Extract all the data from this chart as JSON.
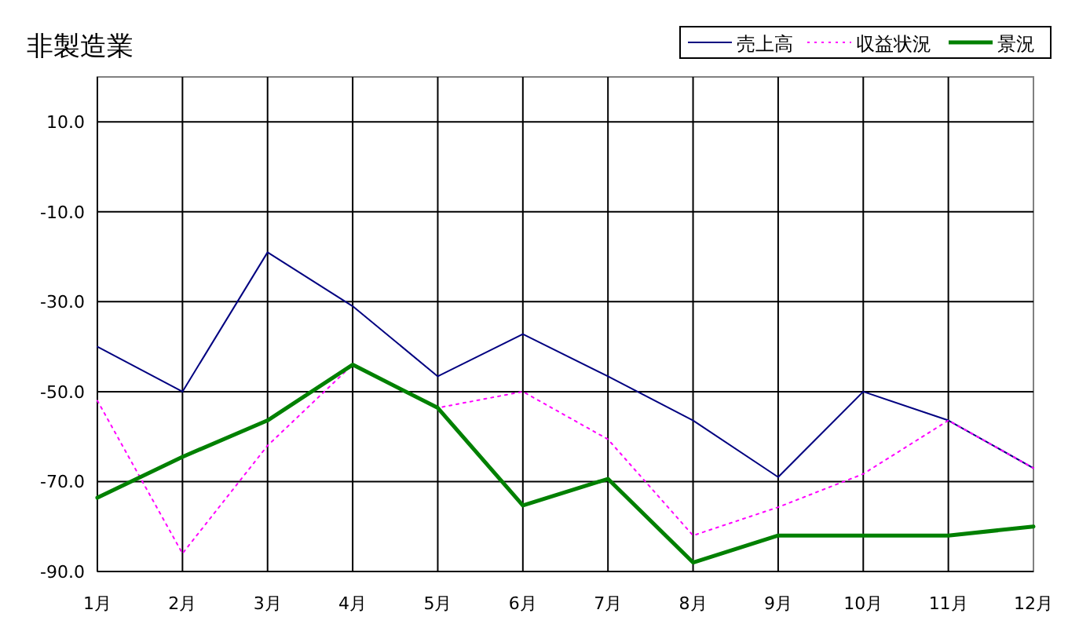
{
  "chart_data": {
    "type": "line",
    "title": "非製造業",
    "categories": [
      "1月",
      "2月",
      "3月",
      "4月",
      "5月",
      "6月",
      "7月",
      "8月",
      "9月",
      "10月",
      "11月",
      "12月"
    ],
    "series": [
      {
        "name": "売上高",
        "color": "#000080",
        "line_style": "solid",
        "values": [
          -40,
          -50,
          -19,
          -31,
          -46.6,
          -37.2,
          -46.6,
          -56.4,
          -69,
          -50,
          -56.4,
          -67
        ]
      },
      {
        "name": "収益状況",
        "color": "#ff00ff",
        "line_style": "dotted",
        "values": [
          -52,
          -86,
          -62,
          -44,
          -53.6,
          -50,
          -60.6,
          -82,
          -75.7,
          -68.3,
          -56.4,
          -67
        ]
      },
      {
        "name": "景況",
        "color": "#008000",
        "line_style": "solid",
        "values": [
          -73.6,
          -64.5,
          -56.4,
          -44,
          -53.6,
          -75.3,
          -69.4,
          -88,
          -82,
          -82,
          -82,
          -80
        ]
      }
    ],
    "ylim": [
      -90,
      20
    ],
    "yticks": [
      {
        "value": 10,
        "label": "10.0"
      },
      {
        "value": -10,
        "label": "-10.0"
      },
      {
        "value": -30,
        "label": "-30.0"
      },
      {
        "value": -50,
        "label": "-50.0"
      },
      {
        "value": -70,
        "label": "-70.0"
      },
      {
        "value": -90,
        "label": "-90.0"
      }
    ],
    "grid": true,
    "legend": "top right"
  }
}
